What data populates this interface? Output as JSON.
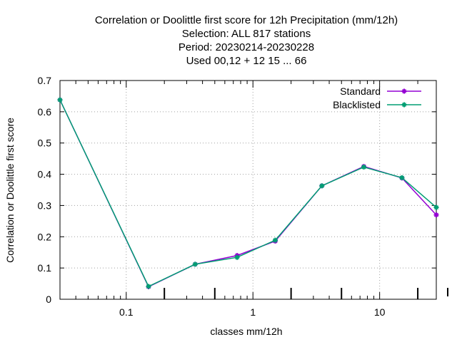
{
  "chart_data": {
    "type": "line",
    "title_lines": [
      "Correlation or Doolittle first score  for 12h Precipitation (mm/12h)",
      "Selection: ALL    817 stations",
      "Period: 20230214-20230228",
      "Used  00,12  + 12 15 ... 66"
    ],
    "xlabel": "classes mm/12h",
    "ylabel": "Correlation or Doolittle first score",
    "x_scale": "log",
    "xlim": [
      0.03,
      28
    ],
    "ylim": [
      0,
      0.7
    ],
    "x_ticks": [
      {
        "value": 0.1,
        "label": "0.1"
      },
      {
        "value": 1,
        "label": "1"
      },
      {
        "value": 10,
        "label": "10"
      }
    ],
    "y_ticks": [
      {
        "value": 0,
        "label": "0"
      },
      {
        "value": 0.1,
        "label": "0.1"
      },
      {
        "value": 0.2,
        "label": "0.2"
      },
      {
        "value": 0.3,
        "label": "0.3"
      },
      {
        "value": 0.4,
        "label": "0.4"
      },
      {
        "value": 0.5,
        "label": "0.5"
      },
      {
        "value": 0.6,
        "label": "0.6"
      },
      {
        "value": 0.7,
        "label": "0.7"
      }
    ],
    "class_marks": [
      0.2,
      0.5,
      2,
      5,
      20
    ],
    "grid": true,
    "legend_position": "top-right",
    "series": [
      {
        "name": "Standard",
        "color": "#9400d3",
        "points": [
          {
            "x": 0.03,
            "y": 0.638
          },
          {
            "x": 0.15,
            "y": 0.04
          },
          {
            "x": 0.35,
            "y": 0.112
          },
          {
            "x": 0.75,
            "y": 0.14
          },
          {
            "x": 1.5,
            "y": 0.186
          },
          {
            "x": 3.5,
            "y": 0.363
          },
          {
            "x": 7.5,
            "y": 0.425
          },
          {
            "x": 15,
            "y": 0.388
          },
          {
            "x": 28,
            "y": 0.27
          }
        ]
      },
      {
        "name": "Blacklisted",
        "color": "#009e73",
        "points": [
          {
            "x": 0.03,
            "y": 0.638
          },
          {
            "x": 0.15,
            "y": 0.041
          },
          {
            "x": 0.35,
            "y": 0.112
          },
          {
            "x": 0.75,
            "y": 0.134
          },
          {
            "x": 1.5,
            "y": 0.189
          },
          {
            "x": 3.5,
            "y": 0.363
          },
          {
            "x": 7.5,
            "y": 0.423
          },
          {
            "x": 15,
            "y": 0.389
          },
          {
            "x": 28,
            "y": 0.294
          }
        ]
      }
    ]
  }
}
